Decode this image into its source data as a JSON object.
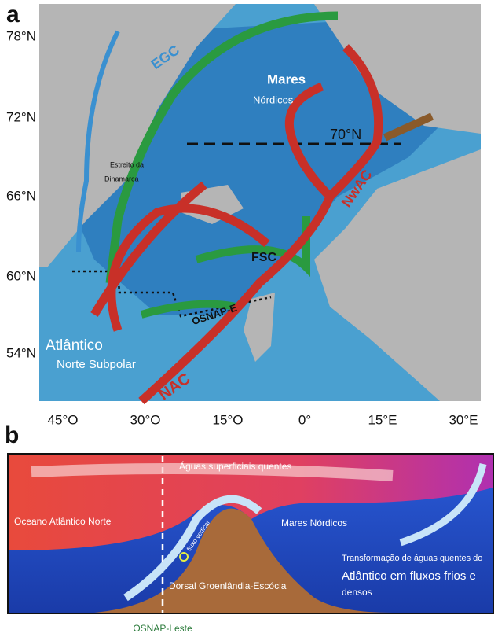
{
  "panel_a": {
    "label": "a",
    "lat_labels": [
      "78°N",
      "72°N",
      "66°N",
      "60°N",
      "54°N"
    ],
    "lon_labels": [
      "45°O",
      "30°O",
      "15°O",
      "0°",
      "15°E",
      "30°E"
    ],
    "annotations": {
      "egc": "EGC",
      "seas_1": "Mares",
      "seas_2": "Nórdicos",
      "lat70": "70°N",
      "strait_1": "Estreito da",
      "strait_2": "Dinamarca",
      "nwac": "NwAC",
      "fsc": "FSC",
      "osnap": "OSNAP-E",
      "atl_1": "Atlântico",
      "atl_2": "Norte Subpolar",
      "nac": "NAC"
    }
  },
  "panel_b": {
    "label": "b",
    "annotations": {
      "surface": "Águas superficiais quentes",
      "atlantic": "Oceano Atlântico Norte",
      "seas": "Mares Nórdicos",
      "vertical": "fluxo vertical",
      "ridge": "Dorsal Groenlândia-Escócia",
      "transf_1": "Transformação de águas quentes do",
      "transf_2": "Atlântico em fluxos frios e",
      "transf_3": "densos",
      "osnap": "OSNAP-Leste"
    }
  }
}
